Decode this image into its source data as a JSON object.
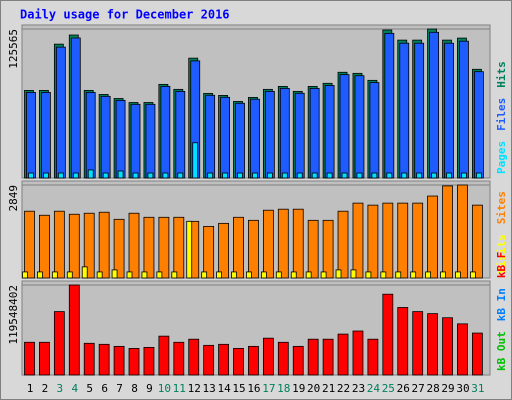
{
  "chart_data": [
    {
      "type": "bar",
      "title": "Daily usage for December 2016",
      "ylim": [
        0,
        125565
      ],
      "yticks": [
        125565
      ],
      "grid": true,
      "series": [
        {
          "name": "Hits",
          "color": "#00805c",
          "values": [
            73800,
            73800,
            112800,
            120500,
            73800,
            70400,
            67000,
            63600,
            63600,
            78900,
            74700,
            101000,
            71300,
            69600,
            64500,
            67900,
            74700,
            77200,
            73000,
            77200,
            79800,
            89100,
            88200,
            82300,
            124700,
            116200,
            116200,
            125565,
            116200,
            117900,
            91600
          ]
        },
        {
          "name": "Files",
          "color": "#1e5cff",
          "values": [
            72100,
            72100,
            110300,
            118000,
            72100,
            68800,
            65400,
            62100,
            62100,
            77200,
            73000,
            98700,
            69700,
            68000,
            63000,
            66400,
            73000,
            75500,
            71400,
            75500,
            78000,
            87100,
            86200,
            80400,
            121900,
            113600,
            113600,
            122800,
            113600,
            115300,
            89600
          ]
        },
        {
          "name": "Pages",
          "color": "#00e0ff",
          "values": [
            4200,
            4200,
            4200,
            4200,
            6800,
            4200,
            5900,
            4200,
            4200,
            4200,
            4200,
            29700,
            4200,
            4200,
            4200,
            4200,
            4200,
            4200,
            4200,
            4200,
            4200,
            4200,
            4200,
            4200,
            4200,
            4200,
            4200,
            4200,
            4200,
            4200,
            4200
          ]
        }
      ]
    },
    {
      "type": "bar",
      "ylim": [
        0,
        2849
      ],
      "yticks": [
        2849
      ],
      "grid": true,
      "series": [
        {
          "name": "Sites",
          "color": "#ff8000",
          "values": [
            2046,
            1922,
            2046,
            1953,
            1984,
            2015,
            1798,
            1984,
            1860,
            1860,
            1860,
            1736,
            1581,
            1674,
            1860,
            1767,
            2077,
            2108,
            2108,
            1767,
            1767,
            2046,
            2294,
            2232,
            2294,
            2294,
            2294,
            2511,
            2821,
            2849,
            2232
          ]
        },
        {
          "name": "Visits",
          "color": "#ffff00",
          "values": [
            186,
            186,
            186,
            186,
            341,
            186,
            248,
            186,
            186,
            186,
            186,
            1736,
            186,
            186,
            186,
            186,
            186,
            186,
            186,
            186,
            186,
            248,
            248,
            186,
            186,
            186,
            186,
            186,
            186,
            186,
            186
          ]
        }
      ]
    },
    {
      "type": "bar",
      "ylim": [
        0,
        119548402
      ],
      "yticks": [
        119548402
      ],
      "grid": true,
      "categories": [
        "1",
        "2",
        "3",
        "4",
        "5",
        "6",
        "7",
        "8",
        "9",
        "10",
        "11",
        "12",
        "13",
        "14",
        "15",
        "16",
        "17",
        "18",
        "19",
        "20",
        "21",
        "22",
        "23",
        "24",
        "25",
        "26",
        "27",
        "28",
        "29",
        "30",
        "31"
      ],
      "x_label_colors": [
        "#000000",
        "#000000",
        "#00805c",
        "#00805c",
        "#000000",
        "#000000",
        "#000000",
        "#000000",
        "#000000",
        "#00805c",
        "#00805c",
        "#000000",
        "#000000",
        "#000000",
        "#000000",
        "#000000",
        "#00805c",
        "#00805c",
        "#000000",
        "#000000",
        "#000000",
        "#000000",
        "#000000",
        "#00805c",
        "#00805c",
        "#000000",
        "#000000",
        "#000000",
        "#000000",
        "#000000",
        "#00805c"
      ],
      "series": [
        {
          "name": "kB F",
          "color": "#ff0000",
          "values": [
            43470000,
            43470000,
            84230000,
            119548402,
            42110000,
            40760000,
            38040000,
            35320000,
            36680000,
            51620000,
            43470000,
            47550000,
            39400000,
            40760000,
            35320000,
            38040000,
            48910000,
            43470000,
            38040000,
            47550000,
            47550000,
            54340000,
            58420000,
            47550000,
            107320000,
            89660000,
            84230000,
            81510000,
            76080000,
            67930000,
            55700000
          ]
        },
        {
          "name": "kB In",
          "color": "#0080ff"
        },
        {
          "name": "kB Out",
          "color": "#00c000"
        }
      ]
    }
  ]
}
